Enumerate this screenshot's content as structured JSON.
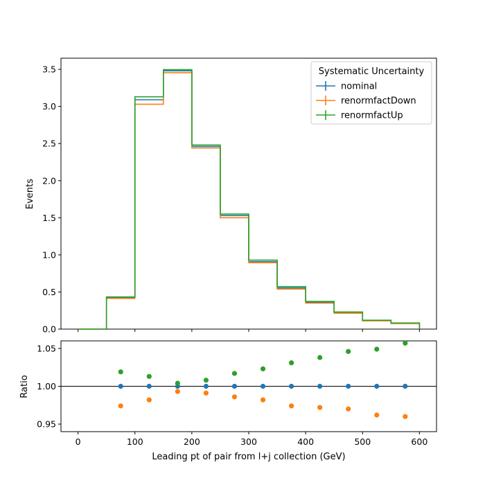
{
  "chart_data": [
    {
      "type": "step",
      "panel": "main",
      "xlabel": "",
      "ylabel": "Events",
      "xlim": [
        -30,
        630
      ],
      "ylim": [
        0,
        3.65
      ],
      "yticks": [
        0.0,
        0.5,
        1.0,
        1.5,
        2.0,
        2.5,
        3.0,
        3.5
      ],
      "ytick_labels": [
        "0.0",
        "0.5",
        "1.0",
        "1.5",
        "2.0",
        "2.5",
        "3.0",
        "3.5"
      ],
      "xticks": [
        0,
        100,
        200,
        300,
        400,
        500,
        600
      ],
      "bin_edges": [
        0,
        50,
        100,
        150,
        200,
        250,
        300,
        350,
        400,
        450,
        500,
        550,
        600
      ],
      "series": [
        {
          "name": "nominal",
          "color": "#1f77b4",
          "values": [
            0.0,
            0.425,
            3.09,
            3.48,
            2.46,
            1.53,
            0.91,
            0.555,
            0.36,
            0.22,
            0.115,
            0.078
          ]
        },
        {
          "name": "renormfactDown",
          "color": "#ff7f0e",
          "values": [
            0.0,
            0.414,
            3.03,
            3.455,
            2.44,
            1.5,
            0.894,
            0.54,
            0.35,
            0.214,
            0.111,
            0.075
          ]
        },
        {
          "name": "renormfactUp",
          "color": "#2ca02c",
          "values": [
            0.0,
            0.434,
            3.13,
            3.495,
            2.48,
            1.55,
            0.93,
            0.572,
            0.373,
            0.23,
            0.12,
            0.082
          ]
        }
      ],
      "legend": {
        "title": "Systematic Uncertainty",
        "entries": [
          "nominal",
          "renormfactDown",
          "renormfactUp"
        ],
        "placement": "top-right"
      }
    },
    {
      "type": "scatter",
      "panel": "ratio",
      "xlabel": "Leading pt of pair from l+j collection (GeV)",
      "ylabel": "Ratio",
      "xlim": [
        -30,
        630
      ],
      "ylim": [
        0.94,
        1.06
      ],
      "yticks": [
        0.95,
        1.0,
        1.05
      ],
      "ytick_labels": [
        "0.95",
        "1.00",
        "1.05"
      ],
      "xticks": [
        0,
        100,
        200,
        300,
        400,
        500,
        600
      ],
      "xtick_labels": [
        "0",
        "100",
        "200",
        "300",
        "400",
        "500",
        "600"
      ],
      "reference_line": 1.0,
      "x": [
        75,
        125,
        175,
        225,
        275,
        325,
        375,
        425,
        475,
        525,
        575
      ],
      "series": [
        {
          "name": "nominal",
          "color": "#1f77b4",
          "values": [
            1.0,
            1.0,
            1.0,
            1.0,
            1.0,
            1.0,
            1.0,
            1.0,
            1.0,
            1.0,
            1.0
          ]
        },
        {
          "name": "renormfactDown",
          "color": "#ff7f0e",
          "values": [
            0.974,
            0.982,
            0.993,
            0.991,
            0.986,
            0.982,
            0.974,
            0.972,
            0.97,
            0.962,
            0.96
          ]
        },
        {
          "name": "renormfactUp",
          "color": "#2ca02c",
          "values": [
            1.019,
            1.013,
            1.004,
            1.008,
            1.017,
            1.023,
            1.031,
            1.038,
            1.046,
            1.049,
            1.057
          ]
        }
      ]
    }
  ]
}
